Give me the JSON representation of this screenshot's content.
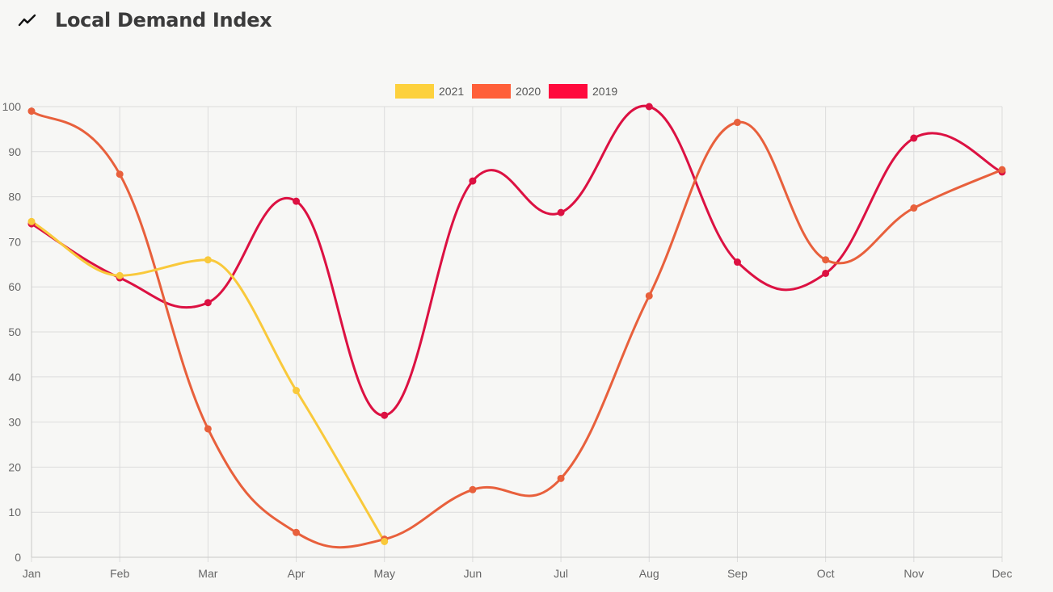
{
  "page": {
    "title": "Local Demand Index",
    "icon": "trending-line-icon"
  },
  "chart_data": {
    "type": "line",
    "title": "Local Demand Index",
    "categories": [
      "Jan",
      "Feb",
      "Mar",
      "Apr",
      "May",
      "Jun",
      "Jul",
      "Aug",
      "Sep",
      "Oct",
      "Nov",
      "Dec"
    ],
    "ylim": [
      0,
      100
    ],
    "yticks": [
      0,
      10,
      20,
      30,
      40,
      50,
      60,
      70,
      80,
      90,
      100
    ],
    "grid": true,
    "legend_position": "top-center",
    "series": [
      {
        "name": "2021",
        "color": "#f9c93b",
        "legend_color": "#fdd13d",
        "curve": "monotone",
        "values": [
          74.5,
          62.5,
          66,
          37,
          3.5,
          null,
          null,
          null,
          null,
          null,
          null,
          null
        ]
      },
      {
        "name": "2020",
        "color": "#e8603c",
        "legend_color": "#ff5f39",
        "curve": "smooth",
        "values": [
          99,
          85,
          28.5,
          5.5,
          4,
          15,
          17.5,
          58,
          96.5,
          66,
          77.5,
          86
        ]
      },
      {
        "name": "2019",
        "color": "#dc1142",
        "legend_color": "#ff0a3d",
        "curve": "smooth",
        "values": [
          74,
          62,
          56.5,
          79,
          31.5,
          83.5,
          76.5,
          100,
          65.5,
          63,
          93,
          85.5
        ]
      }
    ]
  }
}
